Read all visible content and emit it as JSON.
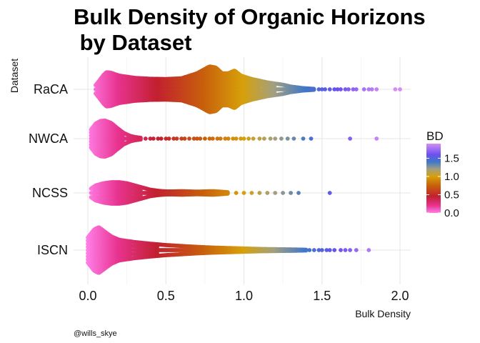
{
  "chart_data": {
    "type": "scatter",
    "subtype": "beeswarm",
    "title_line1": "Bulk Density of Organic Horizons",
    "title_line2": " by Dataset",
    "xlabel": "Bulk Density",
    "ylabel": "Dataset",
    "xlim": [
      -0.05,
      2.08
    ],
    "x_ticks": [
      0.0,
      0.5,
      1.0,
      1.5,
      2.0
    ],
    "x_tick_labels": [
      "0.0",
      "0.5",
      "1.0",
      "1.5",
      "2.0"
    ],
    "grid": true,
    "categories": [
      "RaCA",
      "NWCA",
      "NCSS",
      "ISCN"
    ],
    "legend": {
      "title": "BD",
      "placement": "right",
      "ticks": [
        0.0,
        0.5,
        1.0,
        1.5
      ],
      "tick_labels": [
        "0.0",
        "0.5",
        "1.0",
        "1.5"
      ],
      "range": [
        0.0,
        1.9
      ]
    },
    "color_scale": [
      {
        "value": 0.0,
        "color": "#ff7fe8"
      },
      {
        "value": 0.2,
        "color": "#e8338f"
      },
      {
        "value": 0.45,
        "color": "#c22030"
      },
      {
        "value": 0.75,
        "color": "#c8600c"
      },
      {
        "value": 1.0,
        "color": "#d7a00a"
      },
      {
        "value": 1.2,
        "color": "#a2a080"
      },
      {
        "value": 1.4,
        "color": "#3f78c8"
      },
      {
        "value": 1.6,
        "color": "#6b50f0"
      },
      {
        "value": 1.9,
        "color": "#d48df2"
      }
    ],
    "series": [
      {
        "category": "RaCA",
        "density": [
          [
            0.05,
            0.18
          ],
          [
            0.1,
            0.62
          ],
          [
            0.12,
            0.75
          ],
          [
            0.15,
            0.72
          ],
          [
            0.2,
            0.6
          ],
          [
            0.3,
            0.5
          ],
          [
            0.4,
            0.46
          ],
          [
            0.5,
            0.45
          ],
          [
            0.6,
            0.48
          ],
          [
            0.7,
            0.7
          ],
          [
            0.78,
            1.0
          ],
          [
            0.82,
            0.95
          ],
          [
            0.86,
            0.7
          ],
          [
            0.9,
            0.7
          ],
          [
            0.94,
            0.82
          ],
          [
            0.98,
            0.6
          ],
          [
            1.05,
            0.45
          ],
          [
            1.15,
            0.3
          ],
          [
            1.25,
            0.2
          ],
          [
            1.3,
            0.12
          ],
          [
            1.38,
            0.05
          ],
          [
            1.45,
            0.02
          ]
        ],
        "outliers": [
          1.48,
          1.5,
          1.52,
          1.55,
          1.58,
          1.6,
          1.62,
          1.65,
          1.67,
          1.7,
          1.72,
          1.77,
          1.8,
          1.82,
          1.85,
          1.97,
          2.0
        ]
      },
      {
        "category": "NWCA",
        "density": [
          [
            0.02,
            0.45
          ],
          [
            0.05,
            0.75
          ],
          [
            0.08,
            0.88
          ],
          [
            0.11,
            0.9
          ],
          [
            0.15,
            0.78
          ],
          [
            0.19,
            0.52
          ],
          [
            0.23,
            0.28
          ],
          [
            0.27,
            0.14
          ],
          [
            0.3,
            0.08
          ],
          [
            0.34,
            0.04
          ]
        ],
        "outliers": [
          0.37,
          0.4,
          0.42,
          0.45,
          0.47,
          0.5,
          0.52,
          0.55,
          0.57,
          0.6,
          0.62,
          0.65,
          0.68,
          0.7,
          0.72,
          0.75,
          0.78,
          0.8,
          0.83,
          0.85,
          0.88,
          0.9,
          0.93,
          0.95,
          0.98,
          1.0,
          1.03,
          1.06,
          1.1,
          1.13,
          1.17,
          1.2,
          1.24,
          1.28,
          1.32,
          1.38,
          1.43,
          1.68,
          1.85
        ]
      },
      {
        "category": "NCSS",
        "density": [
          [
            0.02,
            0.2
          ],
          [
            0.05,
            0.35
          ],
          [
            0.1,
            0.45
          ],
          [
            0.15,
            0.5
          ],
          [
            0.2,
            0.5
          ],
          [
            0.25,
            0.45
          ],
          [
            0.3,
            0.35
          ],
          [
            0.35,
            0.25
          ],
          [
            0.4,
            0.15
          ],
          [
            0.45,
            0.1
          ],
          [
            0.5,
            0.07
          ],
          [
            0.55,
            0.07
          ],
          [
            0.6,
            0.08
          ],
          [
            0.65,
            0.07
          ],
          [
            0.7,
            0.06
          ],
          [
            0.75,
            0.07
          ],
          [
            0.8,
            0.08
          ],
          [
            0.85,
            0.06
          ],
          [
            0.9,
            0.03
          ]
        ],
        "outliers": [
          0.95,
          1.0,
          1.05,
          1.1,
          1.15,
          1.2,
          1.25,
          1.3,
          1.35,
          1.55
        ]
      },
      {
        "category": "ISCN",
        "density": [
          [
            0.0,
            0.55
          ],
          [
            0.04,
            0.9
          ],
          [
            0.07,
            1.0
          ],
          [
            0.1,
            0.85
          ],
          [
            0.15,
            0.6
          ],
          [
            0.2,
            0.45
          ],
          [
            0.3,
            0.35
          ],
          [
            0.4,
            0.28
          ],
          [
            0.5,
            0.22
          ],
          [
            0.6,
            0.18
          ],
          [
            0.7,
            0.14
          ],
          [
            0.8,
            0.11
          ],
          [
            0.9,
            0.09
          ],
          [
            1.0,
            0.07
          ],
          [
            1.1,
            0.05
          ],
          [
            1.2,
            0.04
          ],
          [
            1.3,
            0.03
          ],
          [
            1.4,
            0.015
          ]
        ],
        "outliers": [
          1.42,
          1.45,
          1.48,
          1.5,
          1.53,
          1.55,
          1.58,
          1.62,
          1.65,
          1.68,
          1.72,
          1.8
        ]
      }
    ]
  },
  "credit": "@wills_skye"
}
